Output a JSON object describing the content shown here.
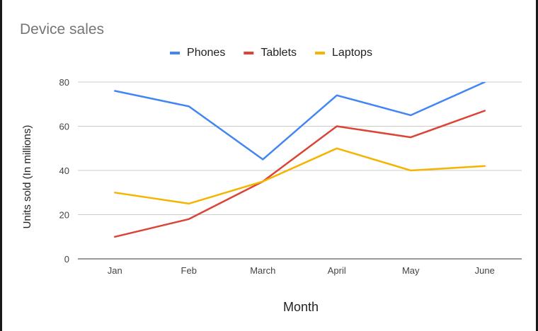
{
  "chart_data": {
    "type": "line",
    "title": "Device sales",
    "xlabel": "Month",
    "ylabel": "Units sold (In millions)",
    "categories": [
      "Jan",
      "Feb",
      "March",
      "April",
      "May",
      "June"
    ],
    "ylim": [
      0,
      80
    ],
    "yticks": [
      0,
      20,
      40,
      60,
      80
    ],
    "grid": true,
    "legend_position": "top",
    "series": [
      {
        "name": "Phones",
        "color": "#4285f4",
        "values": [
          76,
          69,
          45,
          74,
          65,
          80
        ]
      },
      {
        "name": "Tablets",
        "color": "#db4437",
        "values": [
          10,
          18,
          35,
          60,
          55,
          67
        ]
      },
      {
        "name": "Laptops",
        "color": "#f4b400",
        "values": [
          30,
          25,
          35,
          50,
          40,
          42
        ]
      }
    ]
  }
}
